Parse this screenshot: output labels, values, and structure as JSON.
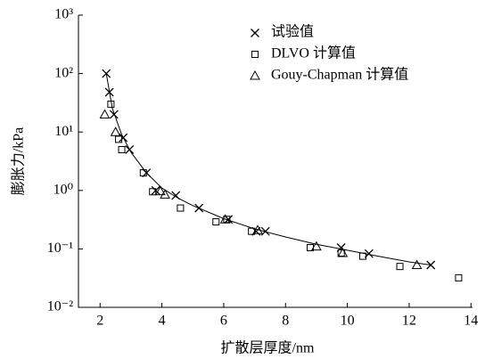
{
  "chart_data": {
    "type": "scatter",
    "x_label": "扩散层厚度/nm",
    "y_label": "膨胀力/kPa",
    "log_y": true,
    "legend": "top-right",
    "xlim": [
      1.3,
      14.05
    ],
    "xticks": [
      2,
      4,
      6,
      8,
      10,
      12,
      14
    ],
    "ylim": [
      0.01,
      1000
    ],
    "yticks": [
      {
        "value": 0.01,
        "label": "10⁻²"
      },
      {
        "value": 0.1,
        "label": "10⁻¹"
      },
      {
        "value": 1,
        "label": "10⁰"
      },
      {
        "value": 10,
        "label": "10¹"
      },
      {
        "value": 100,
        "label": "10²"
      },
      {
        "value": 1000,
        "label": "10³"
      }
    ],
    "series": [
      {
        "name": "试验值",
        "marker": "cross",
        "color": "#000000",
        "x": [
          2.2,
          2.3,
          2.45,
          2.75,
          2.95,
          3.5,
          3.8,
          4.45,
          5.2,
          6.15,
          7.05,
          7.35,
          9.8,
          10.7,
          12.7
        ],
        "values": [
          100,
          48,
          20,
          8,
          5,
          2,
          1,
          0.82,
          0.5,
          0.32,
          0.2,
          0.2,
          0.105,
          0.083,
          0.053
        ]
      },
      {
        "name": "DLVO 计算值",
        "marker": "square",
        "color": "#000000",
        "x": [
          2.35,
          2.6,
          2.7,
          3.4,
          3.7,
          4.6,
          5.75,
          6.1,
          6.9,
          8.8,
          9.8,
          10.5,
          11.7,
          13.6
        ],
        "values": [
          30,
          7.5,
          5,
          2,
          0.95,
          0.5,
          0.29,
          0.32,
          0.2,
          0.105,
          0.085,
          0.075,
          0.05,
          0.032
        ]
      },
      {
        "name": "Gouy-Chapman 计算值",
        "marker": "triangle",
        "color": "#000000",
        "x": [
          2.15,
          2.5,
          3.95,
          4.1,
          6.05,
          7.1,
          9.0,
          9.85,
          12.25
        ],
        "values": [
          20,
          10,
          0.97,
          0.85,
          0.32,
          0.21,
          0.11,
          0.085,
          0.053
        ]
      }
    ],
    "fit": {
      "color": "#000000",
      "x": [
        2.2,
        2.4,
        2.7,
        3,
        3.5,
        4,
        4.5,
        5,
        6,
        7,
        8,
        9,
        10,
        11,
        12,
        12.7
      ],
      "values": [
        100,
        25,
        9,
        4.5,
        2,
        1.1,
        0.75,
        0.55,
        0.33,
        0.22,
        0.16,
        0.12,
        0.095,
        0.075,
        0.06,
        0.053
      ]
    }
  }
}
